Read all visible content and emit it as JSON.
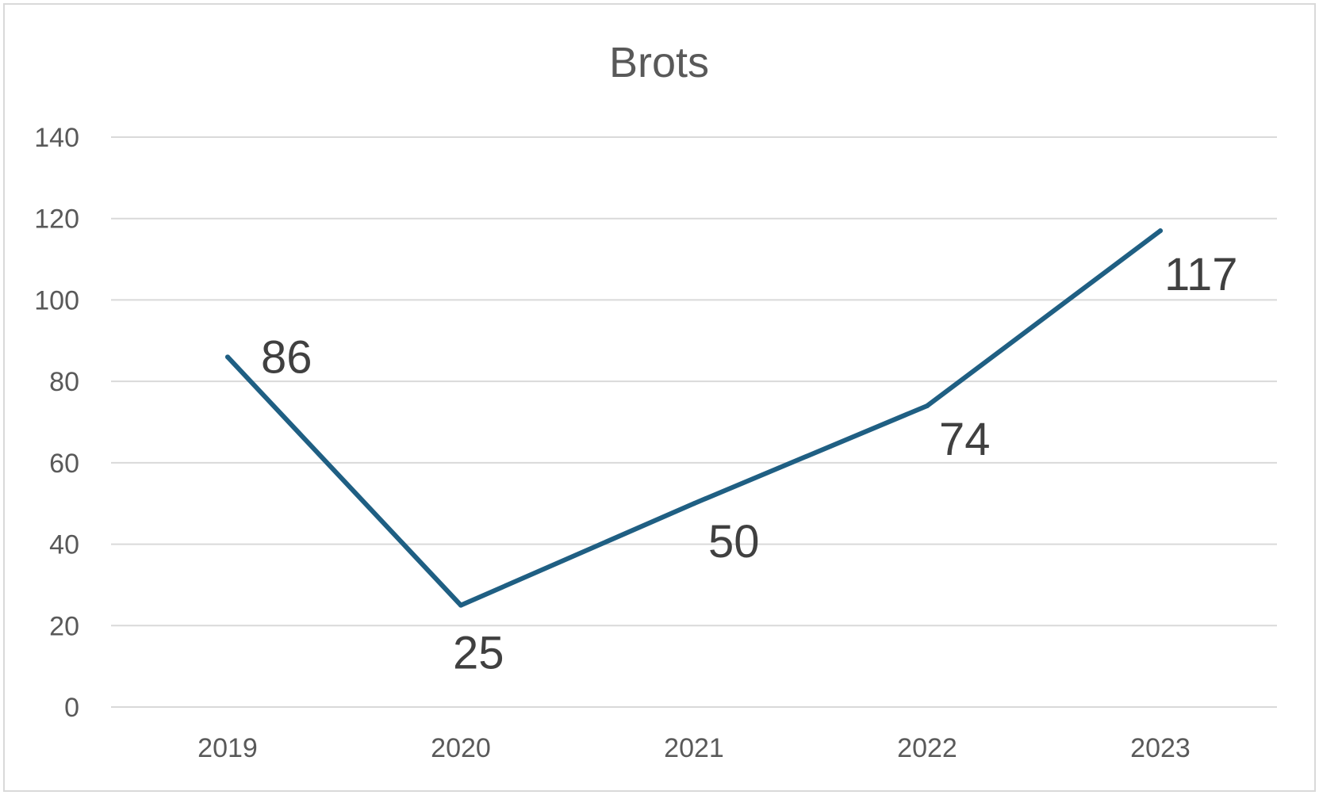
{
  "chart_data": {
    "type": "line",
    "title": "Brots",
    "categories": [
      "2019",
      "2020",
      "2021",
      "2022",
      "2023"
    ],
    "series": [
      {
        "values": [
          86,
          25,
          50,
          74,
          117
        ],
        "color": "#1f5f83"
      }
    ],
    "data_labels": [
      "86",
      "25",
      "50",
      "74",
      "117"
    ],
    "ylim": [
      0,
      140
    ],
    "yticks": [
      "0",
      "20",
      "40",
      "60",
      "80",
      "100",
      "120",
      "140"
    ],
    "grid": true,
    "legend": "none"
  }
}
